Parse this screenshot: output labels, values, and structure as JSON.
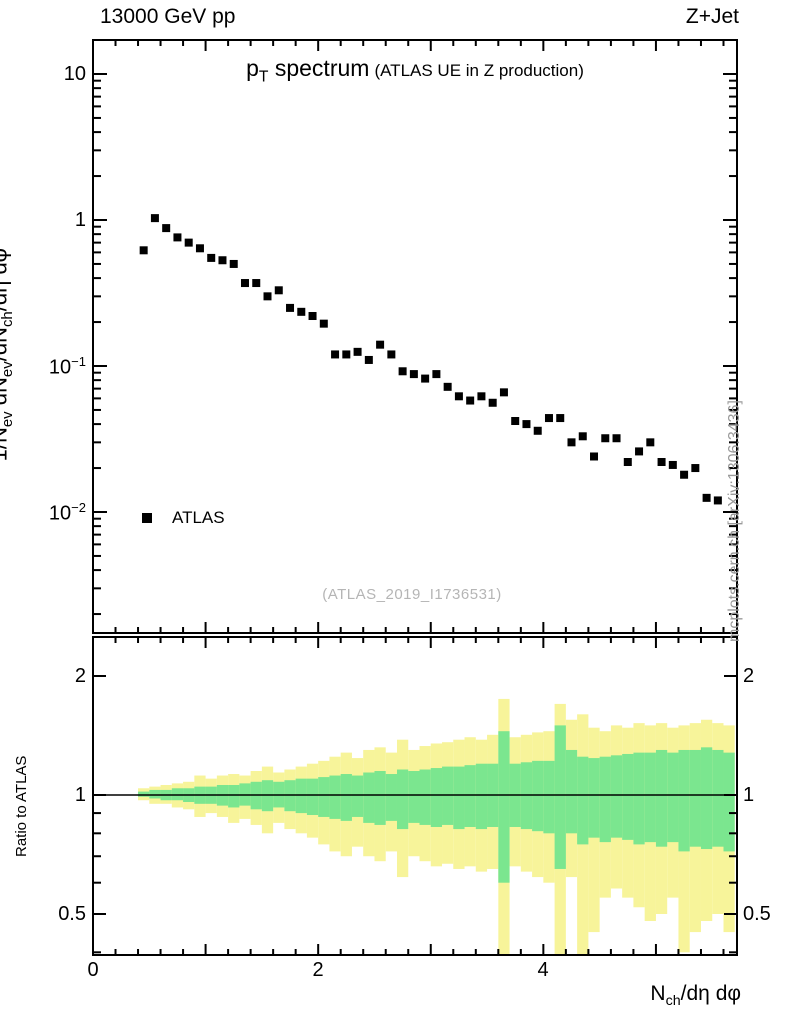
{
  "header": {
    "left": "13000 GeV pp",
    "right": "Z+Jet"
  },
  "title": {
    "obs_base": "p",
    "obs_sub": "T",
    "obs_rest": " spectrum",
    "qualifier": "(ATLAS UE in Z production)"
  },
  "legend": {
    "label": "ATLAS"
  },
  "watermark": "(ATLAS_2019_I1736531)",
  "side_note": "mcplots.cern.ch [arXiv:1306.3436]",
  "axes": {
    "y_label": {
      "p1": "1/N",
      "s1": "ev",
      "p2": " dN",
      "s2": "ev",
      "p3": "/dN",
      "s3": "ch",
      "p4": "/dη dφ"
    },
    "x_label": {
      "p1": "N",
      "s1": "ch",
      "p2": "/dη dφ"
    },
    "ratio_label": "Ratio to ATLAS",
    "x_ticks": [
      {
        "v": 0,
        "label": "0"
      },
      {
        "v": 2,
        "label": "2"
      },
      {
        "v": 4,
        "label": "4"
      }
    ],
    "y_ticks": [
      {
        "v": 10,
        "base": "10",
        "exp": ""
      },
      {
        "v": 1,
        "base": "1",
        "exp": ""
      },
      {
        "v": 0.1,
        "base": "10",
        "exp": "−1"
      },
      {
        "v": 0.01,
        "base": "10",
        "exp": "−2"
      }
    ],
    "ratio_ticks": [
      {
        "v": 0.5,
        "label": "0.5"
      },
      {
        "v": 1,
        "label": "1"
      },
      {
        "v": 2,
        "label": "2"
      }
    ]
  },
  "chart_data": {
    "title": "p_T spectrum (ATLAS UE in Z production)",
    "xlabel": "N_ch/dη dφ",
    "ylabel": "1/N_ev dN_ev/dN_ch/dη dφ",
    "ratio_ylabel": "Ratio to ATLAS",
    "main": {
      "type": "scatter",
      "xscale": "linear",
      "yscale": "log",
      "xlim": [
        0,
        5.72
      ],
      "ylim": [
        0.0016,
        17
      ],
      "series": [
        {
          "name": "ATLAS",
          "marker": "filled-square",
          "color": "#000000",
          "x": [
            0.45,
            0.55,
            0.65,
            0.75,
            0.85,
            0.95,
            1.05,
            1.15,
            1.25,
            1.35,
            1.45,
            1.55,
            1.65,
            1.75,
            1.85,
            1.95,
            2.05,
            2.15,
            2.25,
            2.35,
            2.45,
            2.55,
            2.65,
            2.75,
            2.85,
            2.95,
            3.05,
            3.15,
            3.25,
            3.35,
            3.45,
            3.55,
            3.65,
            3.75,
            3.85,
            3.95,
            4.05,
            4.15,
            4.25,
            4.35,
            4.45,
            4.55,
            4.65,
            4.75,
            4.85,
            4.95,
            5.05,
            5.15,
            5.25,
            5.35,
            5.45,
            5.55
          ],
          "y": [
            0.62,
            1.03,
            0.88,
            0.76,
            0.7,
            0.64,
            0.55,
            0.53,
            0.5,
            0.37,
            0.37,
            0.3,
            0.33,
            0.25,
            0.235,
            0.22,
            0.195,
            0.12,
            0.12,
            0.125,
            0.11,
            0.14,
            0.12,
            0.092,
            0.088,
            0.082,
            0.088,
            0.072,
            0.062,
            0.058,
            0.062,
            0.056,
            0.066,
            0.042,
            0.04,
            0.036,
            0.044,
            0.044,
            0.03,
            0.033,
            0.024,
            0.032,
            0.032,
            0.022,
            0.026,
            0.03,
            0.022,
            0.021,
            0.018,
            0.02,
            0.0125,
            0.012
          ]
        }
      ]
    },
    "ratio": {
      "type": "bands",
      "yscale": "log",
      "ylim": [
        0.394,
        2.51
      ],
      "reference_y": 1,
      "bin_halfwidth": 0.05,
      "colors": {
        "outer": "#f7f49a",
        "inner": "#7be68f"
      },
      "x": [
        0.45,
        0.55,
        0.65,
        0.75,
        0.85,
        0.95,
        1.05,
        1.15,
        1.25,
        1.35,
        1.45,
        1.55,
        1.65,
        1.75,
        1.85,
        1.95,
        2.05,
        2.15,
        2.25,
        2.35,
        2.45,
        2.55,
        2.65,
        2.75,
        2.85,
        2.95,
        3.05,
        3.15,
        3.25,
        3.35,
        3.45,
        3.55,
        3.65,
        3.75,
        3.85,
        3.95,
        4.05,
        4.15,
        4.25,
        4.35,
        4.45,
        4.55,
        4.65,
        4.75,
        4.85,
        4.95,
        5.05,
        5.15,
        5.25,
        5.35,
        5.45,
        5.55,
        5.65
      ],
      "yellow_lo": [
        0.97,
        0.95,
        0.95,
        0.93,
        0.92,
        0.88,
        0.9,
        0.88,
        0.85,
        0.87,
        0.84,
        0.8,
        0.85,
        0.82,
        0.8,
        0.78,
        0.75,
        0.72,
        0.7,
        0.74,
        0.7,
        0.68,
        0.72,
        0.62,
        0.7,
        0.68,
        0.66,
        0.67,
        0.65,
        0.66,
        0.64,
        0.65,
        0.28,
        0.66,
        0.64,
        0.62,
        0.6,
        0.35,
        0.62,
        0.3,
        0.45,
        0.55,
        0.58,
        0.55,
        0.52,
        0.48,
        0.5,
        0.55,
        0.4,
        0.45,
        0.48,
        0.5,
        0.45
      ],
      "yellow_hi": [
        1.04,
        1.05,
        1.06,
        1.07,
        1.08,
        1.12,
        1.1,
        1.12,
        1.13,
        1.12,
        1.15,
        1.18,
        1.14,
        1.16,
        1.18,
        1.2,
        1.22,
        1.25,
        1.28,
        1.24,
        1.3,
        1.32,
        1.28,
        1.38,
        1.3,
        1.33,
        1.35,
        1.36,
        1.38,
        1.4,
        1.38,
        1.42,
        1.75,
        1.4,
        1.42,
        1.44,
        1.45,
        1.7,
        1.55,
        1.6,
        1.48,
        1.45,
        1.5,
        1.48,
        1.52,
        1.5,
        1.52,
        1.48,
        1.5,
        1.52,
        1.55,
        1.52,
        1.5
      ],
      "green_lo": [
        0.99,
        0.98,
        0.97,
        0.97,
        0.96,
        0.95,
        0.95,
        0.94,
        0.93,
        0.94,
        0.92,
        0.91,
        0.93,
        0.91,
        0.9,
        0.89,
        0.88,
        0.87,
        0.86,
        0.88,
        0.85,
        0.84,
        0.86,
        0.82,
        0.85,
        0.84,
        0.83,
        0.84,
        0.82,
        0.83,
        0.82,
        0.83,
        0.6,
        0.83,
        0.82,
        0.81,
        0.8,
        0.65,
        0.8,
        0.75,
        0.78,
        0.76,
        0.78,
        0.77,
        0.75,
        0.76,
        0.74,
        0.76,
        0.72,
        0.74,
        0.73,
        0.74,
        0.72
      ],
      "green_hi": [
        1.02,
        1.03,
        1.03,
        1.04,
        1.04,
        1.05,
        1.05,
        1.06,
        1.06,
        1.07,
        1.08,
        1.09,
        1.08,
        1.09,
        1.1,
        1.1,
        1.11,
        1.12,
        1.13,
        1.12,
        1.14,
        1.15,
        1.13,
        1.16,
        1.15,
        1.16,
        1.17,
        1.18,
        1.18,
        1.19,
        1.2,
        1.2,
        1.45,
        1.2,
        1.21,
        1.22,
        1.22,
        1.5,
        1.3,
        1.25,
        1.24,
        1.25,
        1.26,
        1.27,
        1.28,
        1.28,
        1.3,
        1.28,
        1.3,
        1.3,
        1.32,
        1.3,
        1.28
      ]
    }
  }
}
